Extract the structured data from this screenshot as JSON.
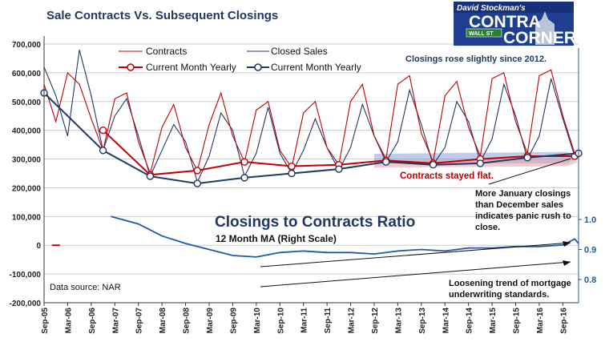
{
  "chart_data": {
    "type": "line",
    "title": "Sale Contracts Vs. Subsequent Closings",
    "source": "Data source: NAR",
    "x_tick_labels": [
      "Sep-05",
      "Mar-06",
      "Sep-06",
      "Mar-07",
      "Sep-07",
      "Mar-08",
      "Sep-08",
      "Mar-09",
      "Sep-09",
      "Mar-10",
      "Sep-10",
      "Mar-11",
      "Sep-11",
      "Mar-12",
      "Sep-12",
      "Mar-13",
      "Sep-13",
      "Mar-14",
      "Sep-14",
      "Mar-15",
      "Sep-15",
      "Mar-16",
      "Sep-16"
    ],
    "left_axis": {
      "ticks": [
        "700,000",
        "600,000",
        "500,000",
        "400,000",
        "300,000",
        "200,000",
        "100,000",
        "0",
        "-100,000",
        "-200,000"
      ],
      "ylim": [
        -200000,
        700000
      ]
    },
    "right_axis": {
      "ticks": [
        "1.0",
        "0.9",
        "0.8"
      ],
      "ylim": [
        0.8,
        1.0
      ]
    },
    "legend": [
      "Contracts",
      "Closed Sales",
      "Current Month Yearly",
      "Current Month Yearly"
    ],
    "colors": {
      "contracts": "#c00000",
      "closed": "#1f3864",
      "ratio": "#1f5aa6",
      "grid": "#cccccc"
    },
    "series": [
      {
        "name": "Contracts",
        "x": [
          "Sep-05",
          "Dec-05",
          "Mar-06",
          "Jun-06",
          "Sep-06",
          "Dec-06",
          "Mar-07",
          "Jun-07",
          "Sep-07",
          "Dec-07",
          "Mar-08",
          "Jun-08",
          "Sep-08",
          "Dec-08",
          "Mar-09",
          "Jun-09",
          "Sep-09",
          "Dec-09",
          "Mar-10",
          "Jun-10",
          "Sep-10",
          "Dec-10",
          "Mar-11",
          "Jun-11",
          "Sep-11",
          "Dec-11",
          "Mar-12",
          "Jun-12",
          "Sep-12",
          "Dec-12",
          "Mar-13",
          "Jun-13",
          "Sep-13",
          "Dec-13",
          "Mar-14",
          "Jun-14",
          "Sep-14",
          "Dec-14",
          "Mar-15",
          "Jun-15",
          "Sep-15",
          "Dec-15",
          "Mar-16",
          "Jun-16",
          "Sep-16",
          "Dec-16",
          "Jan-17"
        ],
        "values": [
          560000,
          430000,
          600000,
          560000,
          440000,
          330000,
          510000,
          530000,
          360000,
          250000,
          410000,
          490000,
          340000,
          260000,
          420000,
          530000,
          380000,
          290000,
          470000,
          500000,
          330000,
          270000,
          460000,
          500000,
          340000,
          280000,
          500000,
          560000,
          380000,
          300000,
          560000,
          590000,
          390000,
          290000,
          520000,
          570000,
          410000,
          310000,
          580000,
          600000,
          430000,
          320000,
          590000,
          610000,
          450000,
          320000,
          310000
        ]
      },
      {
        "name": "Closed Sales",
        "x": [
          "Sep-05",
          "Dec-05",
          "Mar-06",
          "Jun-06",
          "Sep-06",
          "Dec-06",
          "Mar-07",
          "Jun-07",
          "Sep-07",
          "Dec-07",
          "Mar-08",
          "Jun-08",
          "Sep-08",
          "Dec-08",
          "Mar-09",
          "Jun-09",
          "Sep-09",
          "Dec-09",
          "Mar-10",
          "Jun-10",
          "Sep-10",
          "Dec-10",
          "Mar-11",
          "Jun-11",
          "Sep-11",
          "Dec-11",
          "Mar-12",
          "Jun-12",
          "Sep-12",
          "Dec-12",
          "Mar-13",
          "Jun-13",
          "Sep-13",
          "Dec-13",
          "Mar-14",
          "Jun-14",
          "Sep-14",
          "Dec-14",
          "Mar-15",
          "Jun-15",
          "Sep-15",
          "Dec-15",
          "Mar-16",
          "Jun-16",
          "Sep-16",
          "Dec-16",
          "Jan-17"
        ],
        "values": [
          620000,
          520000,
          380000,
          680000,
          520000,
          330000,
          450000,
          510000,
          380000,
          240000,
          330000,
          420000,
          360000,
          220000,
          310000,
          460000,
          400000,
          240000,
          320000,
          480000,
          320000,
          250000,
          330000,
          440000,
          340000,
          260000,
          340000,
          490000,
          380000,
          290000,
          360000,
          540000,
          420000,
          280000,
          340000,
          500000,
          430000,
          290000,
          370000,
          560000,
          450000,
          300000,
          380000,
          580000,
          440000,
          310000,
          320000
        ]
      },
      {
        "name": "Current Month Yearly (Contracts)",
        "x": [
          "Dec-05",
          "Dec-06",
          "Dec-07",
          "Dec-08",
          "Dec-09",
          "Dec-10",
          "Dec-11",
          "Dec-12",
          "Dec-13",
          "Dec-14",
          "Dec-15",
          "Dec-16"
        ],
        "values": [
          0,
          400000,
          245000,
          260000,
          290000,
          275000,
          280000,
          295000,
          285000,
          300000,
          310000,
          310000
        ]
      },
      {
        "name": "Current Month Yearly (Closed Sales)",
        "x": [
          "Sep-05",
          "Dec-06",
          "Dec-07",
          "Dec-08",
          "Dec-09",
          "Dec-10",
          "Dec-11",
          "Dec-12",
          "Dec-13",
          "Dec-14",
          "Dec-15",
          "Jan-17"
        ],
        "values": [
          530000,
          330000,
          240000,
          215000,
          235000,
          250000,
          265000,
          290000,
          280000,
          285000,
          305000,
          320000
        ]
      },
      {
        "name": "Closings to Contracts Ratio",
        "axis": "right",
        "x": [
          "Feb-07",
          "Sep-07",
          "Mar-08",
          "Sep-08",
          "Mar-09",
          "Sep-09",
          "Mar-10",
          "Sep-10",
          "Mar-11",
          "Sep-11",
          "Mar-12",
          "Sep-12",
          "Mar-13",
          "Sep-13",
          "Mar-14",
          "Sep-14",
          "Mar-15",
          "Sep-15",
          "Mar-16",
          "Sep-16",
          "Dec-16",
          "Jan-17"
        ],
        "values": [
          1.01,
          0.985,
          0.945,
          0.92,
          0.9,
          0.88,
          0.875,
          0.89,
          0.895,
          0.89,
          0.89,
          0.885,
          0.895,
          0.9,
          0.895,
          0.905,
          0.905,
          0.91,
          0.91,
          0.915,
          0.935,
          0.92
        ]
      }
    ],
    "annotations": {
      "closings_rose": "Closings rose slightly since 2012.",
      "contracts_flat": "Contracts stayed flat.",
      "january_note": [
        "More January closings",
        "than December sales",
        "indicates panic rush to",
        "close."
      ],
      "ratio_title": "Closings to Contracts Ratio",
      "ratio_subtitle": "12 Month MA (Right Scale)",
      "trend_note": [
        "Loosening trend of mortgage",
        "underwriting standards."
      ]
    }
  },
  "logo": {
    "line1": "David Stockman's",
    "line2": "CONTRA",
    "line3": "CORNER",
    "street_sign": "WALL ST"
  }
}
